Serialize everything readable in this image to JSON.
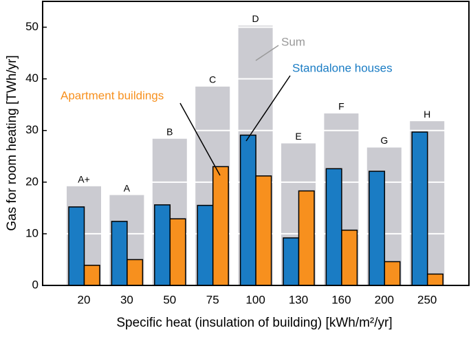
{
  "chart_data": {
    "type": "bar",
    "categories": [
      "20",
      "30",
      "50",
      "75",
      "100",
      "130",
      "160",
      "200",
      "250"
    ],
    "class_labels": [
      "A+",
      "A",
      "B",
      "C",
      "D",
      "E",
      "F",
      "G",
      "H"
    ],
    "series": [
      {
        "name": "Sum",
        "color": "#cbcbd1",
        "values": [
          19.2,
          17.5,
          28.4,
          38.5,
          50.3,
          27.5,
          33.3,
          26.7,
          31.8
        ]
      },
      {
        "name": "Standalone houses",
        "color": "#1a7cc4",
        "values": [
          15.2,
          12.4,
          15.6,
          15.5,
          29.1,
          9.2,
          22.6,
          22.1,
          29.7
        ]
      },
      {
        "name": "Apartment buildings",
        "color": "#f7901e",
        "values": [
          3.9,
          5.0,
          12.9,
          23.0,
          21.2,
          18.3,
          10.7,
          4.6,
          2.2
        ]
      }
    ],
    "ylim": [
      0,
      55
    ],
    "yticks": [
      0,
      10,
      20,
      30,
      40,
      50
    ],
    "grid": true,
    "y_label": "Gas for room heating  [TWh/yr]",
    "x_label": "Specific heat (insulation of building)  [kWh/m²/yr]"
  }
}
